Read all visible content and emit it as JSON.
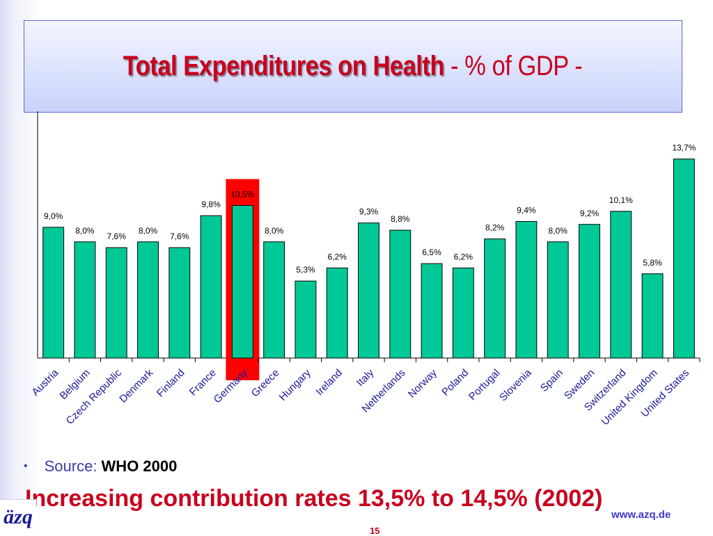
{
  "slide": {
    "title_main": "Total Expenditures on Health",
    "title_sub": " - % of GDP -",
    "source_label": "Source: ",
    "source_value": "WHO 2000",
    "footer_note": "Increasing contribution rates 13,5% to 14,5% (2002)",
    "logo_text": "äzq",
    "url": "www.azq.de",
    "page_number": "15"
  },
  "chart_data": {
    "type": "bar",
    "title": "Total Expenditures on Health - % of GDP -",
    "categories": [
      "Austria",
      "Belgium",
      "Czech Republic",
      "Denmark",
      "Finland",
      "France",
      "Germany",
      "Greece",
      "Hungary",
      "Ireland",
      "Italy",
      "Netherlands",
      "Norway",
      "Poland",
      "Portugal",
      "Slovenia",
      "Spain",
      "Sweden",
      "Switzerland",
      "United Kingdom",
      "United States"
    ],
    "values": [
      9.0,
      8.0,
      7.6,
      8.0,
      7.6,
      9.8,
      10.5,
      8.0,
      5.3,
      6.2,
      9.3,
      8.8,
      6.5,
      6.2,
      8.2,
      9.4,
      8.0,
      9.2,
      10.1,
      5.8,
      13.7
    ],
    "data_labels": [
      "9,0%",
      "8,0%",
      "7,6%",
      "8,0%",
      "7,6%",
      "9,8%",
      "10,5%",
      "8,0%",
      "5,3%",
      "6,2%",
      "9,3%",
      "8,8%",
      "6,5%",
      "6,2%",
      "8,2%",
      "9,4%",
      "8,0%",
      "9,2%",
      "10,1%",
      "5,8%",
      "13,7%"
    ],
    "highlighted_category": "Germany",
    "ylim": [
      0,
      14.5
    ],
    "grid": false,
    "legend": "none",
    "colors": {
      "bar": "#00c896",
      "bar_stroke": "#000000",
      "highlight": "#ff0000"
    }
  }
}
